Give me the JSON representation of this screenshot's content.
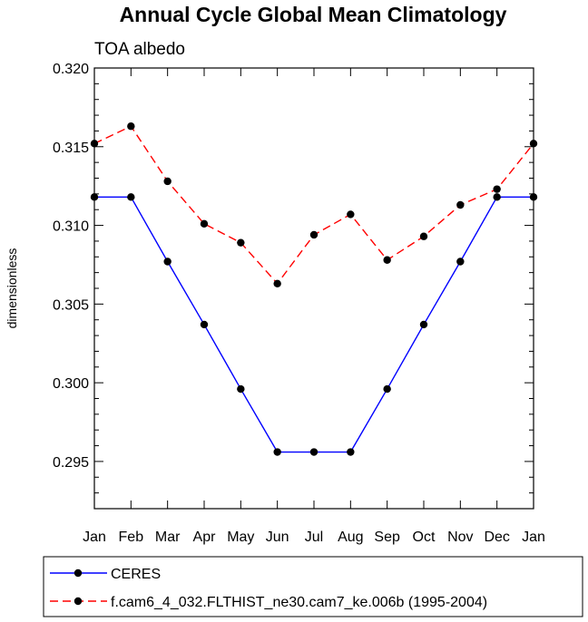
{
  "chart_data": {
    "type": "line",
    "title": "Annual Cycle Global Mean Climatology",
    "subtitle": "TOA albedo",
    "xlabel": "",
    "ylabel": "dimensionless",
    "categories": [
      "Jan",
      "Feb",
      "Mar",
      "Apr",
      "May",
      "Jun",
      "Jul",
      "Aug",
      "Sep",
      "Oct",
      "Nov",
      "Dec",
      "Jan"
    ],
    "ylim": [
      0.292,
      0.32
    ],
    "yticks": [
      "0.295",
      "0.300",
      "0.305",
      "0.310",
      "0.315",
      "0.320"
    ],
    "series": [
      {
        "name": "CERES",
        "color": "#0000ff",
        "dash": "solid",
        "values": [
          0.3118,
          0.3118,
          0.3077,
          0.3037,
          0.2996,
          0.2956,
          0.2956,
          0.2956,
          0.2996,
          0.3037,
          0.3077,
          0.3118,
          0.3118
        ]
      },
      {
        "name": "f.cam6_4_032.FLTHIST_ne30.cam7_ke.006b (1995-2004)",
        "color": "#ff0000",
        "dash": "dashed",
        "values": [
          0.3152,
          0.3163,
          0.3128,
          0.3101,
          0.3089,
          0.3063,
          0.3094,
          0.3107,
          0.3078,
          0.3093,
          0.3113,
          0.3123,
          0.3152
        ]
      }
    ]
  }
}
